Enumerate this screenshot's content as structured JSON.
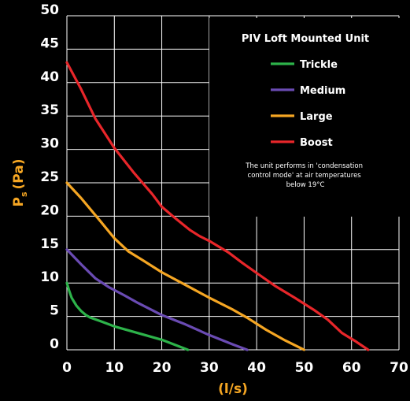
{
  "chart_data": {
    "type": "line",
    "title": "PIV Loft Mounted Unit",
    "xlabel": "(l/s)",
    "ylabel_main": "P",
    "ylabel_sub": "s",
    "ylabel_unit": "(Pa)",
    "xlim": [
      0,
      70
    ],
    "ylim": [
      0,
      50
    ],
    "x_ticks": [
      0,
      10,
      20,
      30,
      40,
      50,
      60,
      70
    ],
    "y_ticks": [
      0,
      5,
      10,
      15,
      20,
      25,
      30,
      35,
      40,
      45,
      50
    ],
    "grid": true,
    "legend_position": "top-right",
    "note": [
      "The unit performs in 'condensation",
      "control mode' at air temperatures",
      "below 19°C"
    ],
    "series": [
      {
        "name": "Trickle",
        "color": "#2db34a",
        "points": [
          [
            0,
            10
          ],
          [
            0.5,
            8.8
          ],
          [
            1,
            7.8
          ],
          [
            2,
            6.6
          ],
          [
            3,
            5.8
          ],
          [
            4,
            5.2
          ],
          [
            5,
            4.8
          ],
          [
            7,
            4.3
          ],
          [
            10,
            3.5
          ],
          [
            15,
            2.5
          ],
          [
            20,
            1.5
          ],
          [
            25.5,
            0
          ]
        ]
      },
      {
        "name": "Medium",
        "color": "#6a4bb3",
        "points": [
          [
            0,
            15
          ],
          [
            3,
            12.8
          ],
          [
            6,
            10.7
          ],
          [
            9,
            9.3
          ],
          [
            12,
            8.2
          ],
          [
            15,
            7
          ],
          [
            20,
            5.2
          ],
          [
            25,
            3.8
          ],
          [
            30,
            2.2
          ],
          [
            35,
            0.8
          ],
          [
            38,
            0
          ]
        ]
      },
      {
        "name": "Large",
        "color": "#f5a623",
        "points": [
          [
            0,
            25
          ],
          [
            3,
            22.7
          ],
          [
            7,
            19.3
          ],
          [
            10,
            16.7
          ],
          [
            13,
            14.7
          ],
          [
            16,
            13.4
          ],
          [
            20,
            11.6
          ],
          [
            25,
            9.7
          ],
          [
            30,
            7.8
          ],
          [
            35,
            6
          ],
          [
            38,
            4.8
          ],
          [
            42,
            3
          ],
          [
            46,
            1.4
          ],
          [
            50,
            0
          ]
        ]
      },
      {
        "name": "Boost",
        "color": "#e8262a",
        "points": [
          [
            0,
            43
          ],
          [
            3,
            39
          ],
          [
            6,
            34.6
          ],
          [
            10,
            30.2
          ],
          [
            14,
            26.6
          ],
          [
            18,
            23.3
          ],
          [
            20,
            21.4
          ],
          [
            23,
            19.6
          ],
          [
            26,
            17.9
          ],
          [
            28,
            17
          ],
          [
            30,
            16.3
          ],
          [
            34,
            14.6
          ],
          [
            37,
            13
          ],
          [
            40,
            11.5
          ],
          [
            44,
            9.5
          ],
          [
            48,
            7.8
          ],
          [
            52,
            6
          ],
          [
            55,
            4.5
          ],
          [
            58,
            2.5
          ],
          [
            61,
            1.2
          ],
          [
            63.5,
            0
          ]
        ]
      }
    ]
  }
}
